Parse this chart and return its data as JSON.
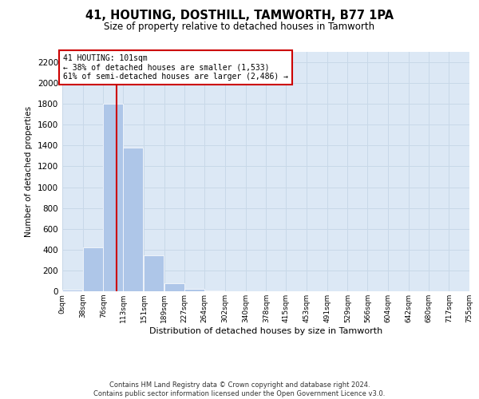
{
  "title": "41, HOUTING, DOSTHILL, TAMWORTH, B77 1PA",
  "subtitle": "Size of property relative to detached houses in Tamworth",
  "xlabel": "Distribution of detached houses by size in Tamworth",
  "ylabel": "Number of detached properties",
  "footer_line1": "Contains HM Land Registry data © Crown copyright and database right 2024.",
  "footer_line2": "Contains public sector information licensed under the Open Government Licence v3.0.",
  "bin_labels": [
    "0sqm",
    "38sqm",
    "76sqm",
    "113sqm",
    "151sqm",
    "189sqm",
    "227sqm",
    "264sqm",
    "302sqm",
    "340sqm",
    "378sqm",
    "415sqm",
    "453sqm",
    "491sqm",
    "529sqm",
    "566sqm",
    "604sqm",
    "642sqm",
    "680sqm",
    "717sqm",
    "755sqm"
  ],
  "bin_edges": [
    0,
    38,
    76,
    113,
    151,
    189,
    227,
    264,
    302,
    340,
    378,
    415,
    453,
    491,
    529,
    566,
    604,
    642,
    680,
    717,
    755
  ],
  "bar_heights": [
    15,
    420,
    1800,
    1380,
    345,
    75,
    20,
    10,
    0,
    0,
    0,
    0,
    0,
    0,
    0,
    0,
    0,
    0,
    0,
    0
  ],
  "bar_color": "#aec6e8",
  "bar_edge_color": "white",
  "grid_color": "#c8d8e8",
  "background_color": "#dce8f5",
  "vline_x": 101,
  "vline_color": "#cc0000",
  "annotation_text": "41 HOUTING: 101sqm\n← 38% of detached houses are smaller (1,533)\n61% of semi-detached houses are larger (2,486) →",
  "annotation_box_color": "#ffffff",
  "annotation_box_edge": "#cc0000",
  "ylim": [
    0,
    2300
  ],
  "yticks": [
    0,
    200,
    400,
    600,
    800,
    1000,
    1200,
    1400,
    1600,
    1800,
    2000,
    2200
  ]
}
